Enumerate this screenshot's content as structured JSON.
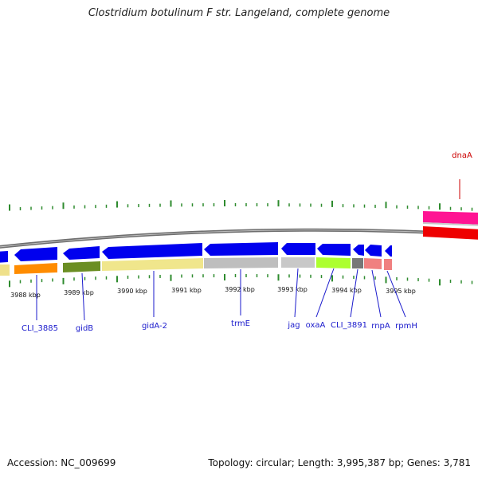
{
  "title": "Clostridium botulinum F str. Langeland, complete genome",
  "footer": {
    "accession": "Accession: NC_009699",
    "topology": "Topology: circular; Length: 3,995,387 bp; Genes: 3,781"
  },
  "colors": {
    "gene_label": "#1a1acc",
    "dnaA_label": "#cc0000",
    "tick": "#2e8b2e",
    "backbone": "#777777"
  },
  "ticks": [
    "3988 kbp",
    "3989 kbp",
    "3990 kbp",
    "3991 kbp",
    "3992 kbp",
    "3993 kbp",
    "3994 kbp",
    "3995 kbp"
  ],
  "genes": [
    {
      "label": "CLI_3885"
    },
    {
      "label": "gidB"
    },
    {
      "label": "gidA-2"
    },
    {
      "label": "trmE"
    },
    {
      "label": "jag"
    },
    {
      "label": "oxaA"
    },
    {
      "label": "CLI_3891"
    },
    {
      "label": "rnpA"
    },
    {
      "label": "rpmH"
    },
    {
      "label": "dnaA"
    }
  ]
}
